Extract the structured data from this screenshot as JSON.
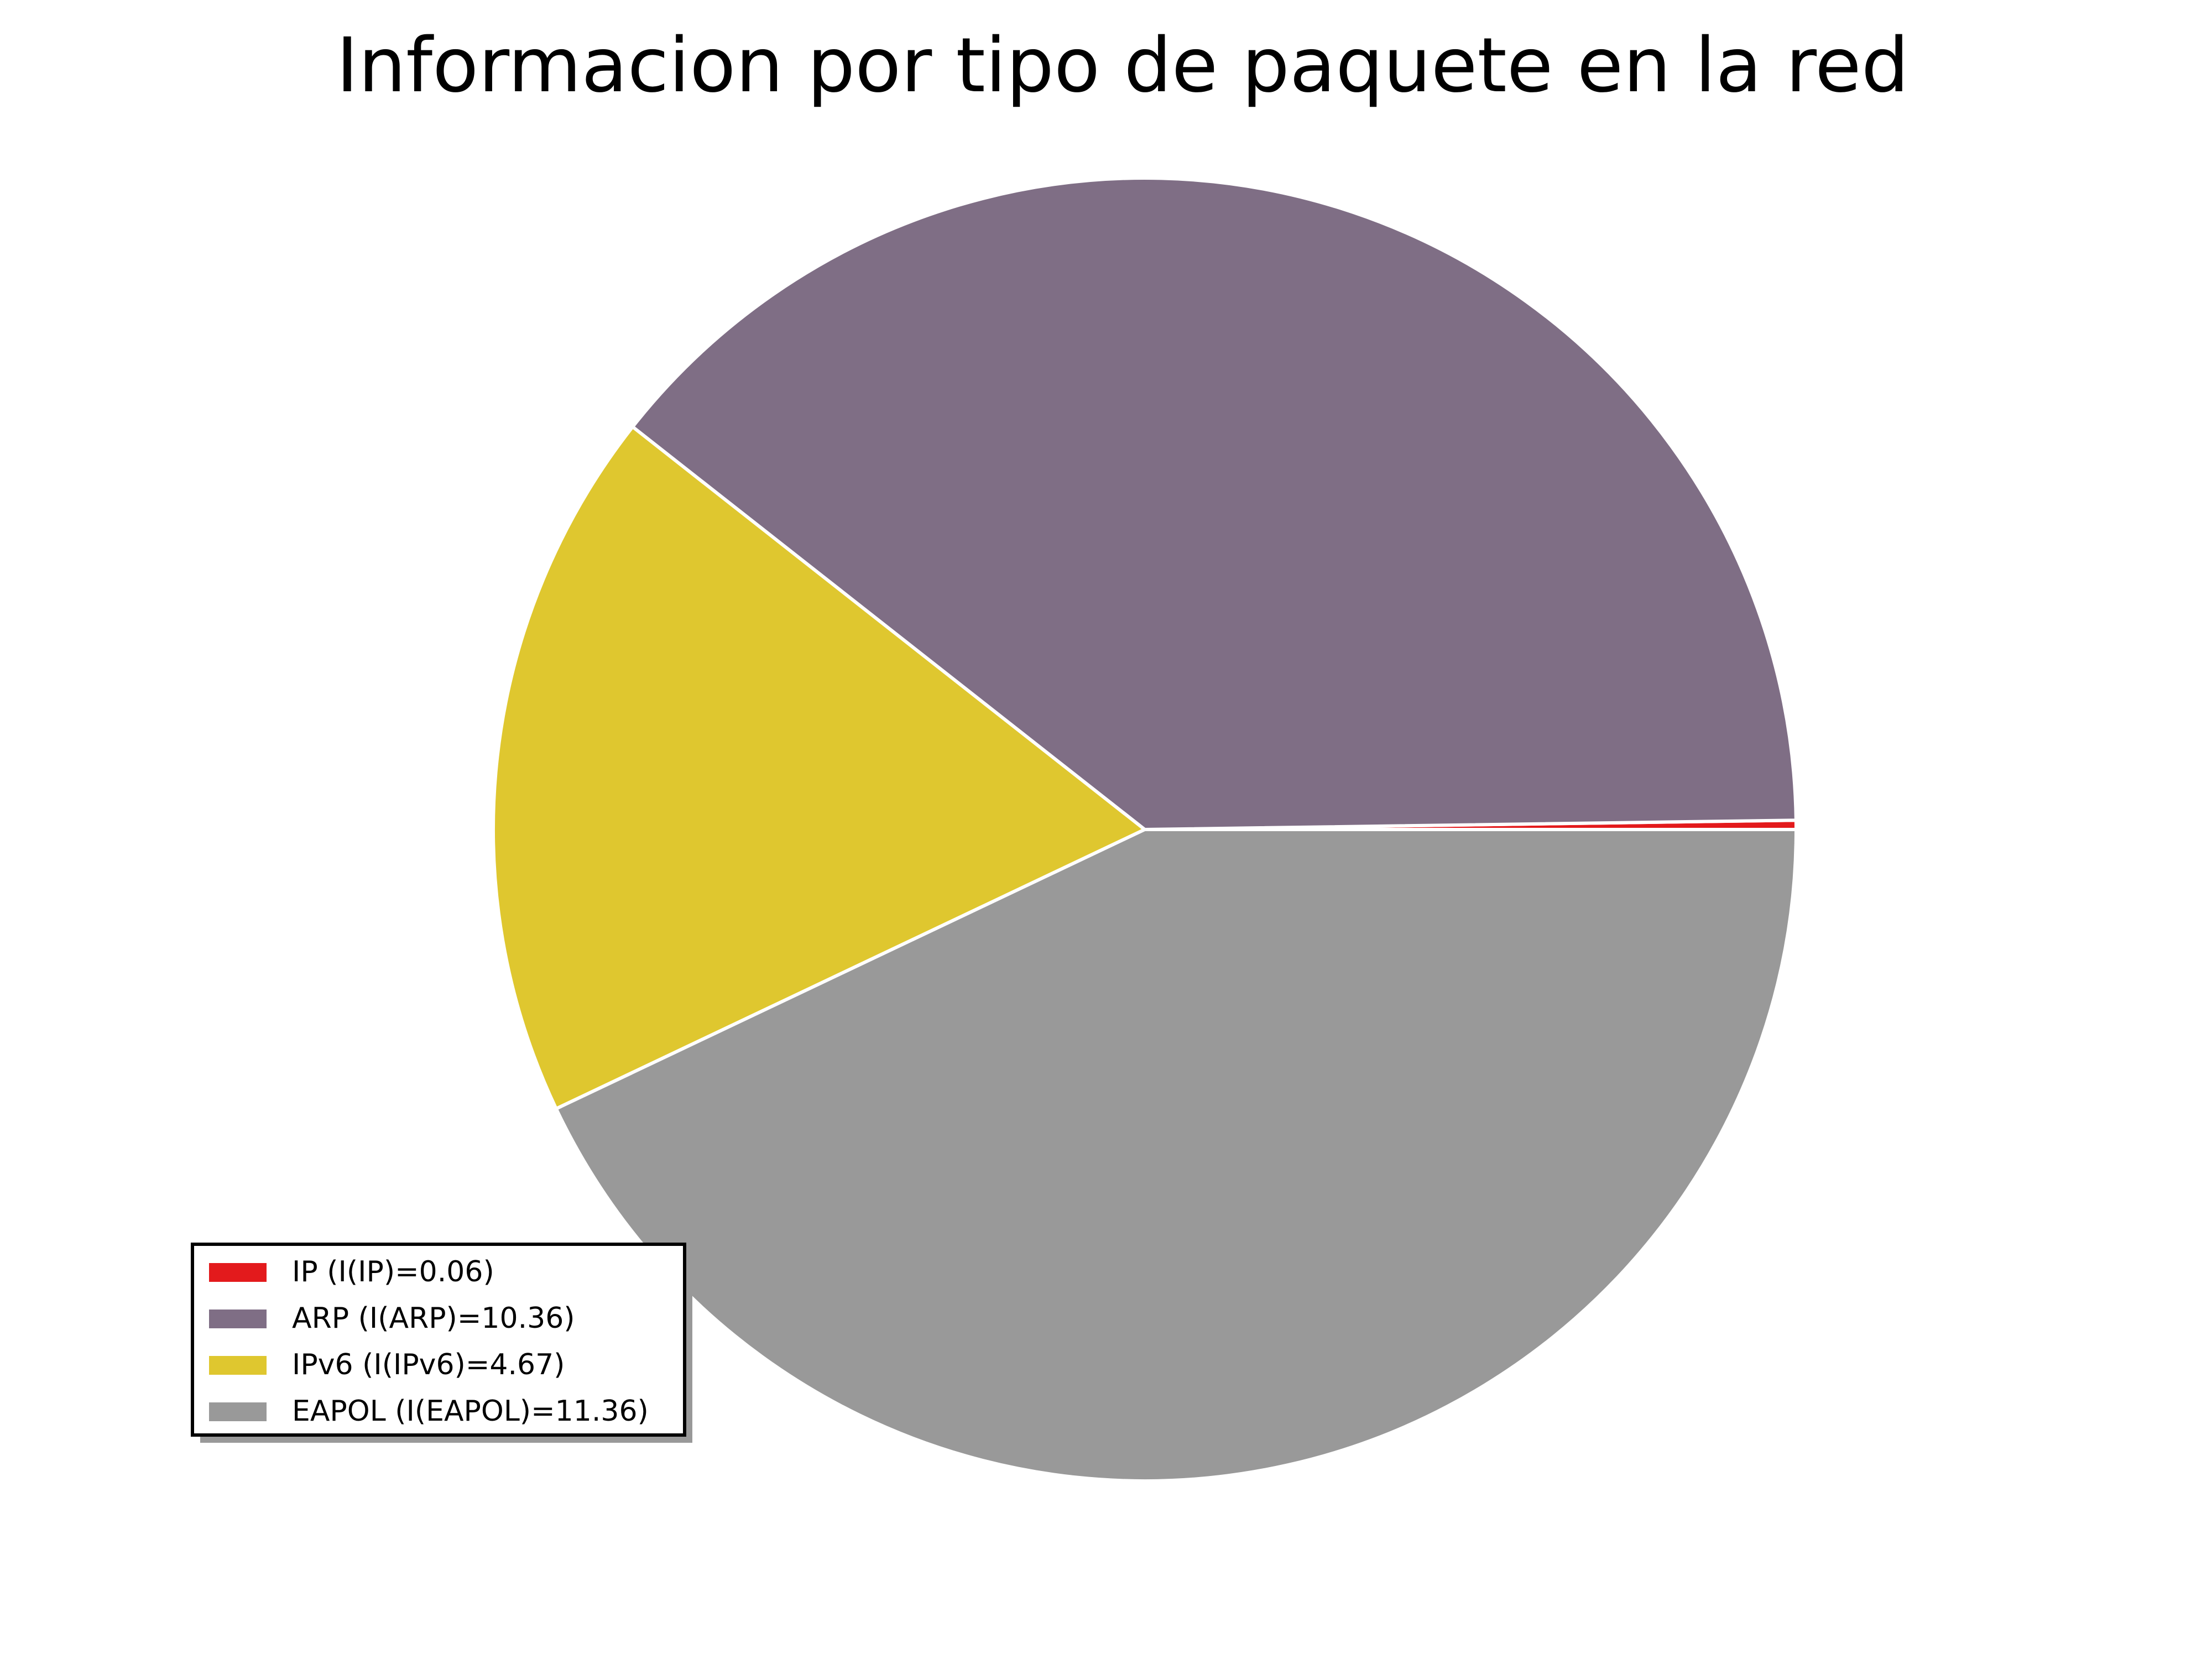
{
  "chart_data": {
    "type": "pie",
    "title": "Informacion por tipo de paquete en la red",
    "slices": [
      {
        "label": "IP",
        "value": 0.06,
        "color": "#e31a1c",
        "legend": "IP (I(IP)=0.06)"
      },
      {
        "label": "ARP",
        "value": 10.36,
        "color": "#7f6e85",
        "legend": "ARP (I(ARP)=10.36)"
      },
      {
        "label": "IPv6",
        "value": 4.67,
        "color": "#dfc72f",
        "legend": "IPv6 (I(IPv6)=4.67)"
      },
      {
        "label": "EAPOL",
        "value": 11.36,
        "color": "#999999",
        "legend": "EAPOL (I(EAPOL)=11.36)"
      }
    ],
    "start_angle_deg": 0,
    "direction": "counterclockwise",
    "wedge_edge_color": "#ffffff",
    "legend_position": "lower-left",
    "legend_shadow": true
  }
}
